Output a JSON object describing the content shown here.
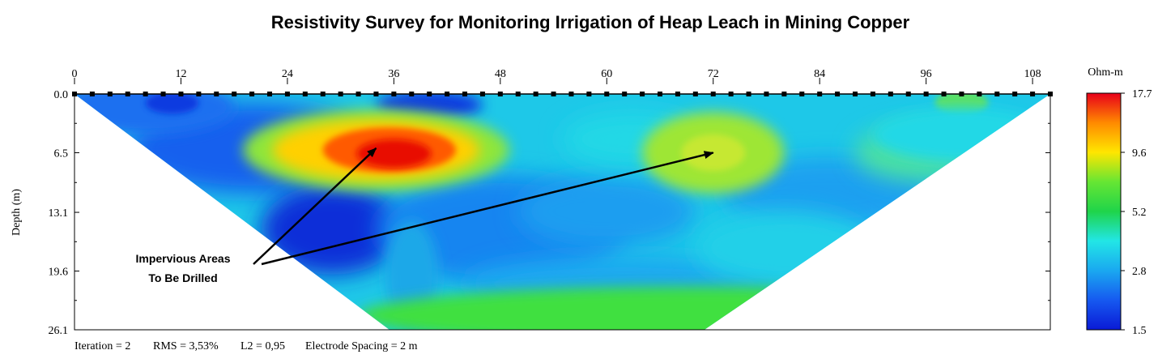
{
  "chart_data": {
    "type": "heatmap",
    "title": "Resistivity Survey for Monitoring Irrigation of Heap Leach in Mining Copper",
    "ylabel": "Depth (m)",
    "x_ticks": [
      0,
      12,
      24,
      36,
      48,
      60,
      72,
      84,
      96,
      108
    ],
    "xlim": [
      0,
      110
    ],
    "y_ticks": [
      "0.0",
      "6.5",
      "13.1",
      "19.6",
      "26.1"
    ],
    "ylim": [
      0,
      26.1
    ],
    "grid": false,
    "electrode_spacing_m": 2,
    "colorbar": {
      "unit": "Ohm-m",
      "tick_labels": [
        "17.7",
        "9.6",
        "5.2",
        "2.8",
        "1.5"
      ],
      "colors": [
        "#e8001a",
        "#ff8a00",
        "#ffe600",
        "#66e633",
        "#1fd44a",
        "#22e6e6",
        "#1aa8f0",
        "#1659f0",
        "#0a1ad6"
      ]
    },
    "background_color": "#1ec8e8",
    "anomalies": [
      {
        "x": 34,
        "depth": 6.2,
        "rx": 15,
        "ry": 4.5,
        "color": "#ff5a00",
        "label": "high"
      },
      {
        "x": 72,
        "depth": 6.5,
        "rx": 8,
        "ry": 4.5,
        "color": "#9ee636",
        "label": "moderate"
      },
      {
        "x": 70,
        "depth": 24.5,
        "rx": 38,
        "ry": 3.2,
        "color": "#3fe03f",
        "label": "moderate"
      }
    ],
    "annotation": {
      "lines": [
        "Impervious Areas",
        "To Be Drilled"
      ],
      "arrow_targets": [
        {
          "x": 34,
          "depth": 6.0
        },
        {
          "x": 72,
          "depth": 6.5
        }
      ]
    },
    "footer": {
      "iteration": "Iteration = 2",
      "rms": "RMS = 3,53%",
      "l2": "L2 = 0,95",
      "spacing": "Electrode Spacing = 2 m"
    }
  }
}
